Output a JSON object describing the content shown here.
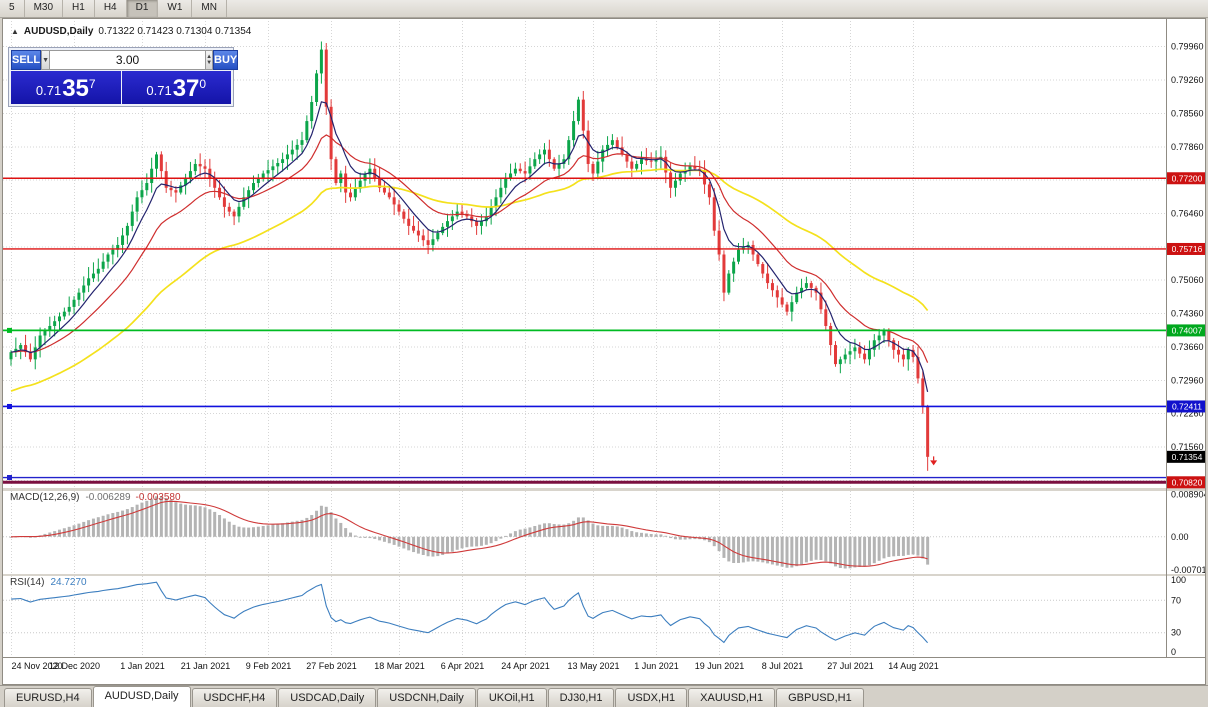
{
  "toolbar": {
    "timeframes": [
      "5",
      "M30",
      "H1",
      "H4",
      "D1",
      "W1",
      "MN"
    ],
    "active": "D1"
  },
  "chart": {
    "collapse_marker": "▲",
    "symbol_label": "AUDUSD,Daily",
    "ohlc_text": "0.71322 0.71423 0.71304 0.71354"
  },
  "trade_panel": {
    "sell_label": "SELL",
    "buy_label": "BUY",
    "volume": "3.00",
    "combo_arrow": "▼",
    "spin_up": "▲",
    "spin_down": "▼",
    "sell_price": {
      "prefix": "0.71",
      "big": "35",
      "sup": "7"
    },
    "buy_price": {
      "prefix": "0.71",
      "big": "37",
      "sup": "0"
    }
  },
  "chart_data": {
    "type": "candlestick",
    "symbol": "AUDUSD",
    "period": "Daily",
    "colors": {
      "up": "#0ca54a",
      "down": "#e23a3a",
      "grid": "#d6d6d6",
      "ma_fast": "#23236e",
      "ma_mid": "#cf2e2e",
      "ma_slow": "#f4e11c",
      "macd_hist": "#b4b4b4",
      "macd_signal": "#cf3a3a",
      "rsi": "#3c7ebf"
    },
    "closes": [
      0.7355,
      0.7362,
      0.737,
      0.7355,
      0.734,
      0.7365,
      0.739,
      0.74,
      0.741,
      0.742,
      0.743,
      0.744,
      0.745,
      0.7465,
      0.748,
      0.7495,
      0.751,
      0.752,
      0.753,
      0.7545,
      0.756,
      0.757,
      0.758,
      0.76,
      0.762,
      0.765,
      0.768,
      0.7695,
      0.771,
      0.774,
      0.777,
      0.7735,
      0.77,
      0.7695,
      0.769,
      0.7705,
      0.772,
      0.7735,
      0.775,
      0.7745,
      0.774,
      0.772,
      0.77,
      0.768,
      0.766,
      0.765,
      0.764,
      0.766,
      0.768,
      0.7695,
      0.771,
      0.772,
      0.773,
      0.7737,
      0.7745,
      0.7752,
      0.776,
      0.777,
      0.778,
      0.779,
      0.78,
      0.784,
      0.788,
      0.794,
      0.799,
      0.787,
      0.776,
      0.771,
      0.773,
      0.769,
      0.768,
      0.7698,
      0.7715,
      0.7728,
      0.774,
      0.772,
      0.77,
      0.769,
      0.768,
      0.7665,
      0.765,
      0.7635,
      0.762,
      0.761,
      0.76,
      0.759,
      0.758,
      0.7592,
      0.7605,
      0.7618,
      0.763,
      0.764,
      0.765,
      0.7645,
      0.764,
      0.763,
      0.762,
      0.763,
      0.764,
      0.766,
      0.768,
      0.77,
      0.772,
      0.773,
      0.774,
      0.7735,
      0.773,
      0.7745,
      0.776,
      0.777,
      0.778,
      0.776,
      0.774,
      0.775,
      0.776,
      0.78,
      0.784,
      0.7885,
      0.782,
      0.775,
      0.773,
      0.7755,
      0.778,
      0.779,
      0.78,
      0.7785,
      0.777,
      0.7755,
      0.774,
      0.775,
      0.776,
      0.7757,
      0.7755,
      0.776,
      0.7765,
      0.7732,
      0.77,
      0.7715,
      0.773,
      0.7737,
      0.7745,
      0.774,
      0.7735,
      0.7707,
      0.768,
      0.761,
      0.756,
      0.748,
      0.752,
      0.7545,
      0.757,
      0.7575,
      0.758,
      0.756,
      0.754,
      0.752,
      0.75,
      0.7485,
      0.747,
      0.7455,
      0.744,
      0.746,
      0.748,
      0.749,
      0.75,
      0.749,
      0.748,
      0.7445,
      0.741,
      0.737,
      0.733,
      0.734,
      0.735,
      0.7357,
      0.7365,
      0.7352,
      0.734,
      0.736,
      0.738,
      0.739,
      0.74,
      0.738,
      0.736,
      0.735,
      0.734,
      0.736,
      0.7345,
      0.73,
      0.724,
      0.71354
    ],
    "wick_overrides": {
      "64": {
        "h": 0.8007
      },
      "117": {
        "h": 0.7891
      },
      "147": {
        "l": 0.7462
      },
      "189": {
        "l": 0.7106
      }
    },
    "price_axis": {
      "min": 0.707,
      "max": 0.805,
      "ticks": [
        "0.79960",
        "0.79260",
        "0.78560",
        "0.77860",
        "0.77160",
        "0.76460",
        "0.75760",
        "0.75060",
        "0.74360",
        "0.73660",
        "0.72960",
        "0.72260",
        "0.71560",
        "0.70860"
      ]
    },
    "hlines": [
      {
        "value": 0.772,
        "label": "0.77200",
        "color": "#dd1111",
        "width": 1.4,
        "badge": "#cc1111",
        "handles": false
      },
      {
        "value": 0.75716,
        "label": "0.75716",
        "color": "#dd1111",
        "width": 1.4,
        "badge": "#cc1111",
        "handles": false
      },
      {
        "value": 0.74007,
        "label": "0.74007",
        "color": "#00bb22",
        "width": 1.8,
        "badge": "#00a81e",
        "handles": true
      },
      {
        "value": 0.72411,
        "label": "0.72411",
        "color": "#1111dd",
        "width": 1.6,
        "badge": "#1111cc",
        "handles": true
      },
      {
        "value": 0.7092,
        "label": "",
        "color": "#2222cc",
        "width": 1.4,
        "badge": "",
        "handles": true
      },
      {
        "value": 0.7082,
        "label": "0.70820",
        "color": "#7b1040",
        "width": 3,
        "badge": "#cc1111",
        "handles": false
      }
    ],
    "current_price": {
      "value": 0.71354,
      "label": "0.71354",
      "badge": "#000000"
    },
    "marker": {
      "type": "sell-arrow",
      "x_index": 189,
      "price": 0.7128,
      "color": "#e02020"
    },
    "dates": [
      "24 Nov 2020",
      "12 Dec 2020",
      "1 Jan 2021",
      "21 Jan 2021",
      "9 Feb 2021",
      "27 Feb 2021",
      "18 Mar 2021",
      "6 Apr 2021",
      "24 Apr 2021",
      "13 May 2021",
      "1 Jun 2021",
      "19 Jun 2021",
      "8 Jul 2021",
      "27 Jul 2021",
      "14 Aug 2021"
    ],
    "date_tick_indices": [
      0,
      13,
      27,
      40,
      53,
      66,
      80,
      93,
      106,
      120,
      133,
      146,
      159,
      173,
      186
    ],
    "moving_averages": [
      {
        "period": 50,
        "seed": 0.727,
        "color": "#f4e11c",
        "width": 1.7
      },
      {
        "period": 18,
        "seed": null,
        "color": "#cf2e2e",
        "width": 1.2
      },
      {
        "period": 7,
        "seed": null,
        "color": "#23236e",
        "width": 1.2
      }
    ],
    "indicators": {
      "macd": {
        "label": "MACD(12,26,9)",
        "value_main": "-0.006289",
        "value_signal": "-0.003580",
        "fast": 12,
        "slow": 26,
        "signal": 9,
        "axis": [
          "0.008904",
          "0.00",
          "-0.00701"
        ],
        "range": [
          -0.0078,
          0.0096
        ]
      },
      "rsi": {
        "label": "RSI(14)",
        "value": "24.7270",
        "period": 14,
        "levels": [
          70,
          30
        ],
        "axis": [
          "100",
          "70",
          "30",
          "0"
        ]
      }
    }
  },
  "tabs": {
    "items": [
      "EURUSD,H4",
      "AUDUSD,Daily",
      "USDCHF,H4",
      "USDCAD,Daily",
      "USDCNH,Daily",
      "UKOil,H1",
      "DJ30,H1",
      "USDX,H1",
      "XAUUSD,H1",
      "GBPUSD,H1"
    ],
    "active": "AUDUSD,Daily"
  }
}
